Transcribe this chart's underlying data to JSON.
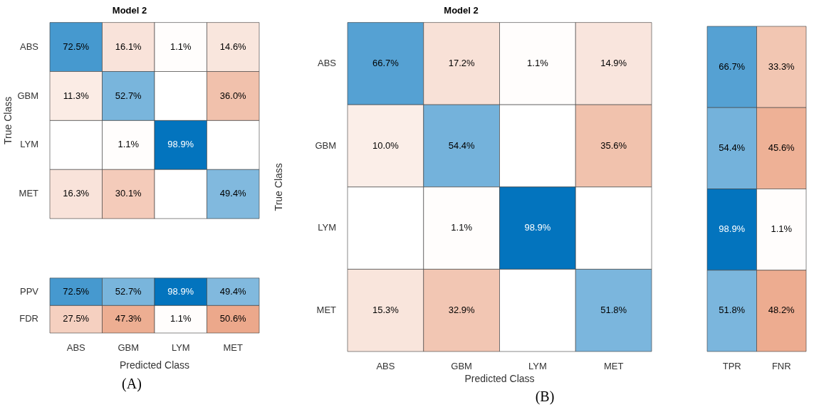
{
  "chart_data": [
    {
      "type": "heatmap",
      "title": "Model 2",
      "ylabel": "True Class",
      "categories": [
        null,
        null,
        null,
        null
      ],
      "y_categories": [
        "ABS",
        "GBM",
        "LYM",
        "MET"
      ],
      "tick_labels": "y",
      "cells": [
        [
          72.5,
          16.1,
          1.1,
          14.6
        ],
        [
          11.3,
          52.7,
          null,
          36.0
        ],
        [
          null,
          1.1,
          98.9,
          null
        ],
        [
          16.3,
          30.1,
          null,
          49.4
        ]
      ],
      "cell_labels": [
        [
          "72.5%",
          "16.1%",
          "1.1%",
          "14.6%"
        ],
        [
          "11.3%",
          "52.7%",
          null,
          "36.0%"
        ],
        [
          null,
          "1.1%",
          "98.9%",
          null
        ],
        [
          "16.3%",
          "30.1%",
          null,
          "49.4%"
        ]
      ]
    },
    {
      "type": "heatmap",
      "xlabel": "Predicted Class",
      "categories": [
        "ABS",
        "GBM",
        "LYM",
        "MET"
      ],
      "y_categories": [
        "PPV",
        "FDR"
      ],
      "cells": [
        [
          72.5,
          52.7,
          98.9,
          49.4
        ],
        [
          27.5,
          47.3,
          1.1,
          50.6
        ]
      ],
      "cell_labels": [
        [
          "72.5%",
          "52.7%",
          "98.9%",
          "49.4%"
        ],
        [
          "27.5%",
          "47.3%",
          "1.1%",
          "50.6%"
        ]
      ],
      "annotations": [
        "(A)"
      ]
    },
    {
      "type": "heatmap",
      "title": "Model 2",
      "xlabel": "Predicted Class",
      "ylabel": "True Class",
      "categories": [
        "ABS",
        "GBM",
        "LYM",
        "MET"
      ],
      "y_categories": [
        "ABS",
        "GBM",
        "LYM",
        "MET"
      ],
      "cells": [
        [
          66.7,
          17.2,
          1.1,
          14.9
        ],
        [
          10.0,
          54.4,
          null,
          35.6
        ],
        [
          null,
          1.1,
          98.9,
          null
        ],
        [
          15.3,
          32.9,
          null,
          51.8
        ]
      ],
      "cell_labels": [
        [
          "66.7%",
          "17.2%",
          "1.1%",
          "14.9%"
        ],
        [
          "10.0%",
          "54.4%",
          null,
          "35.6%"
        ],
        [
          null,
          "1.1%",
          "98.9%",
          null
        ],
        [
          "15.3%",
          "32.9%",
          null,
          "51.8%"
        ]
      ],
      "annotations": [
        "(B)"
      ]
    },
    {
      "type": "heatmap",
      "categories": [
        "TPR",
        "FNR"
      ],
      "y_categories": [
        null,
        null,
        null,
        null
      ],
      "tick_labels": "x",
      "cells": [
        [
          66.7,
          33.3
        ],
        [
          54.4,
          45.6
        ],
        [
          98.9,
          1.1
        ],
        [
          51.8,
          48.2
        ]
      ],
      "cell_labels": [
        [
          "66.7%",
          "33.3%"
        ],
        [
          "54.4%",
          "45.6%"
        ],
        [
          "98.9%",
          "1.1%"
        ],
        [
          "51.8%",
          "48.2%"
        ]
      ]
    }
  ]
}
